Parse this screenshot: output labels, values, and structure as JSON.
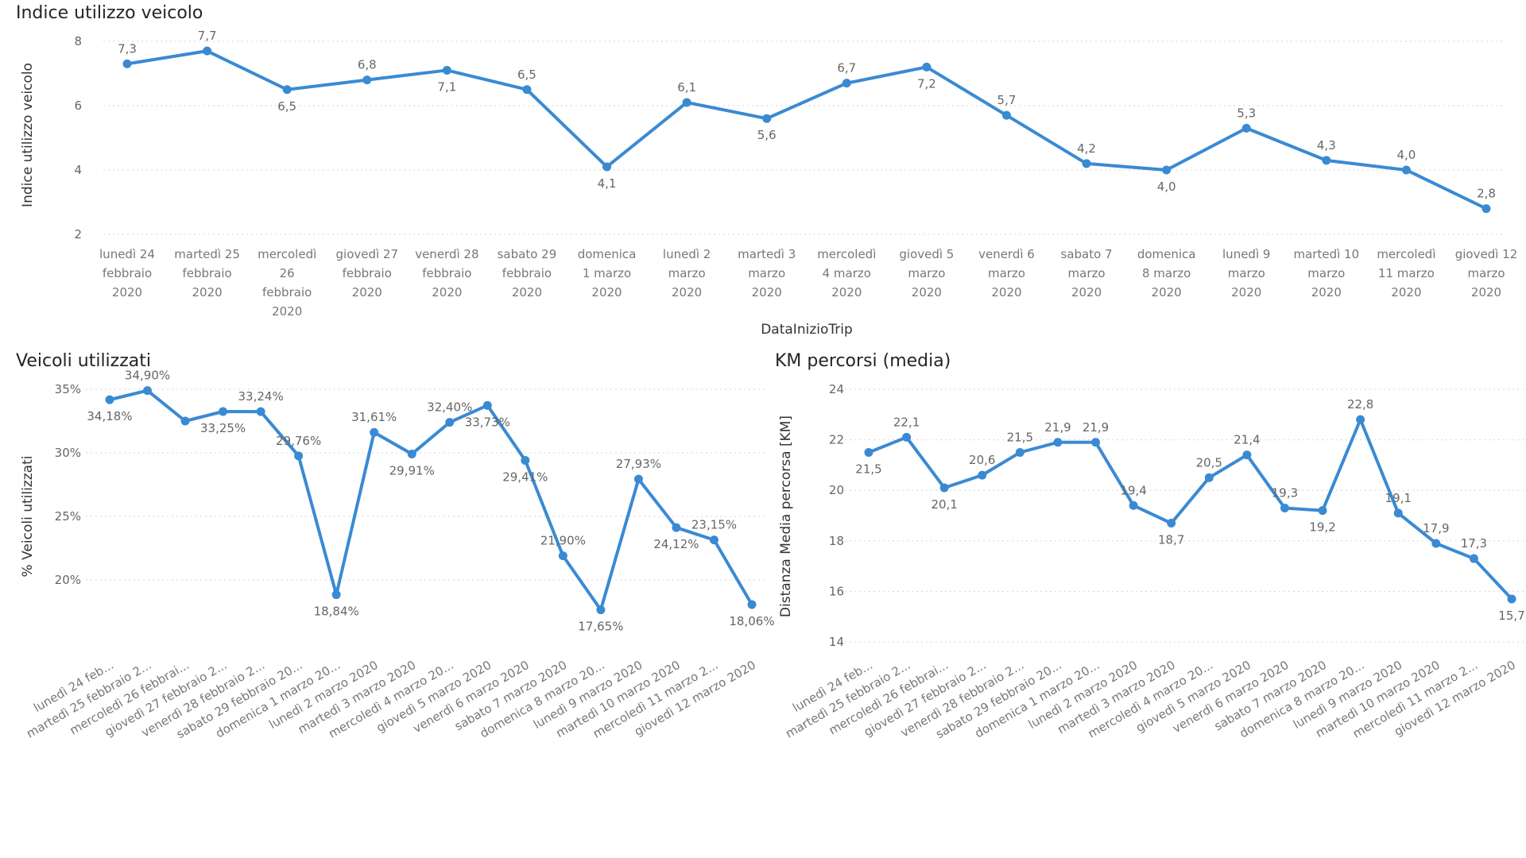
{
  "chart_data": [
    {
      "type": "line",
      "title": "Indice utilizzo veicolo",
      "xlabel": "DataInizioTrip",
      "ylabel": "Indice utilizzo veicolo",
      "ylim": [
        2,
        8
      ],
      "yticks": [
        "2",
        "4",
        "6",
        "8"
      ],
      "grid": true,
      "categories": [
        [
          "lunedì 24",
          "febbraio",
          "2020"
        ],
        [
          "martedì 25",
          "febbraio",
          "2020"
        ],
        [
          "mercoledì",
          "26",
          "febbraio",
          "2020"
        ],
        [
          "giovedì 27",
          "febbraio",
          "2020"
        ],
        [
          "venerdì 28",
          "febbraio",
          "2020"
        ],
        [
          "sabato 29",
          "febbraio",
          "2020"
        ],
        [
          "domenica",
          "1 marzo",
          "2020"
        ],
        [
          "lunedì 2",
          "marzo",
          "2020"
        ],
        [
          "martedì 3",
          "marzo",
          "2020"
        ],
        [
          "mercoledì",
          "4 marzo",
          "2020"
        ],
        [
          "giovedì 5",
          "marzo",
          "2020"
        ],
        [
          "venerdì 6",
          "marzo",
          "2020"
        ],
        [
          "sabato 7",
          "marzo",
          "2020"
        ],
        [
          "domenica",
          "8 marzo",
          "2020"
        ],
        [
          "lunedì 9",
          "marzo",
          "2020"
        ],
        [
          "martedì 10",
          "marzo",
          "2020"
        ],
        [
          "mercoledì",
          "11 marzo",
          "2020"
        ],
        [
          "giovedì 12",
          "marzo",
          "2020"
        ]
      ],
      "values": [
        7.3,
        7.7,
        6.5,
        6.8,
        7.1,
        6.5,
        4.1,
        6.1,
        5.6,
        6.7,
        7.2,
        5.7,
        4.2,
        4.0,
        5.3,
        4.3,
        4.0,
        2.8
      ],
      "labels": [
        "7,3",
        "7,7",
        "6,5",
        "6,8",
        "7,1",
        "6,5",
        "4,1",
        "6,1",
        "5,6",
        "6,7",
        "7,2",
        "5,7",
        "4,2",
        "4,0",
        "5,3",
        "4,3",
        "4,0",
        "2,8"
      ]
    },
    {
      "type": "line",
      "title": "Veicoli utilizzati",
      "xlabel": "",
      "ylabel": "% Veicoli utilizzati",
      "ylim": [
        15,
        35
      ],
      "yticks": [
        "20%",
        "25%",
        "30%",
        "35%"
      ],
      "grid": true,
      "categories": [
        "lunedì 24 feb...",
        "martedì 25 febbraio 2...",
        "mercoledì 26 febbrai...",
        "giovedì 27 febbraio 2...",
        "venerdì 28 febbraio 2...",
        "sabato 29 febbraio 20...",
        "domenica 1 marzo 20...",
        "lunedì 2 marzo 2020",
        "martedì 3 marzo 2020",
        "mercoledì 4 marzo 20...",
        "giovedì 5 marzo 2020",
        "venerdì 6 marzo 2020",
        "sabato 7 marzo 2020",
        "domenica 8 marzo 20...",
        "lunedì 9 marzo 2020",
        "martedì 10 marzo 2020",
        "mercoledì 11 marzo 2...",
        "giovedì 12 marzo 2020"
      ],
      "values": [
        34.18,
        34.9,
        32.5,
        33.25,
        33.24,
        29.76,
        18.84,
        31.61,
        29.91,
        32.4,
        33.73,
        29.41,
        21.9,
        17.65,
        27.93,
        24.12,
        23.15,
        18.06
      ],
      "labels": [
        "34,18%",
        "34,90%",
        "",
        "33,25%",
        "33,24%",
        "29,76%",
        "18,84%",
        "31,61%",
        "29,91%",
        "32,40%",
        "33,73%",
        "29,41%",
        "21,90%",
        "17,65%",
        "27,93%",
        "24,12%",
        "23,15%",
        "18,06%"
      ]
    },
    {
      "type": "line",
      "title": "KM percorsi (media)",
      "xlabel": "",
      "ylabel": "Distanza Media percorsa [KM]",
      "ylim": [
        14,
        24
      ],
      "yticks": [
        "14",
        "16",
        "18",
        "20",
        "22",
        "24"
      ],
      "grid": true,
      "categories": [
        "lunedì 24 feb...",
        "martedì 25 febbraio 2...",
        "mercoledì 26 febbrai...",
        "giovedì 27 febbraio 2...",
        "venerdì 28 febbraio 2...",
        "sabato 29 febbraio 20...",
        "domenica 1 marzo 20...",
        "lunedì 2 marzo 2020",
        "martedì 3 marzo 2020",
        "mercoledì 4 marzo 20...",
        "giovedì 5 marzo 2020",
        "venerdì 6 marzo 2020",
        "sabato 7 marzo 2020",
        "domenica 8 marzo 20...",
        "lunedì 9 marzo 2020",
        "martedì 10 marzo 2020",
        "mercoledì 11 marzo 2...",
        "giovedì 12 marzo 2020"
      ],
      "values": [
        21.5,
        22.1,
        20.1,
        20.6,
        21.5,
        21.9,
        21.9,
        19.4,
        18.7,
        20.5,
        21.4,
        19.3,
        19.2,
        22.8,
        19.1,
        17.9,
        17.3,
        15.7
      ],
      "labels": [
        "21,5",
        "22,1",
        "20,1",
        "20,6",
        "21,5",
        "21,9",
        "21,9",
        "19,4",
        "18,7",
        "20,5",
        "21,4",
        "19,3",
        "19,2",
        "22,8",
        "19,1",
        "17,9",
        "17,3",
        "15,7"
      ]
    }
  ]
}
